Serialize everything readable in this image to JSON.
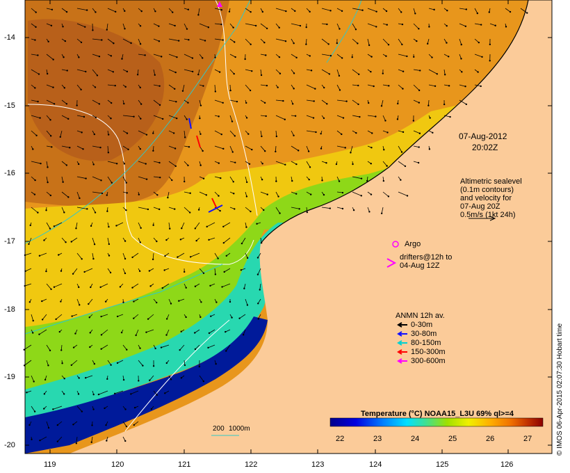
{
  "map": {
    "x_ticks": [
      "119",
      "120",
      "121",
      "122",
      "123",
      "124",
      "125",
      "126"
    ],
    "y_ticks": [
      "-14",
      "-15",
      "-16",
      "-17",
      "-18",
      "-19",
      "-20"
    ],
    "timestamp": {
      "date": "07-Aug-2012",
      "time": "20:02Z"
    },
    "altimetry_note": [
      "Altimetric sealevel",
      "(0.1m contours)",
      "and velocity for",
      "07-Aug 20Z",
      "0.5m/s (1kt 24h)"
    ],
    "argo_label": "Argo",
    "drifters_label": [
      "drifters@12h to",
      "04-Aug 12Z"
    ],
    "anmn": {
      "title": "ANMN 12h av.",
      "items": [
        {
          "label": "0-30m",
          "color": "#000000"
        },
        {
          "label": "30-80m",
          "color": "#1010ff"
        },
        {
          "label": "80-150m",
          "color": "#00d0d0"
        },
        {
          "label": "150-300m",
          "color": "#ff0000"
        },
        {
          "label": "300-600m",
          "color": "#ff00ff"
        }
      ]
    },
    "contour_legend": {
      "label1": "200",
      "label2": "1000m"
    },
    "colorbar": {
      "title": "Temperature (°C) NOAA15_L3U 69% ql>=4",
      "ticks": [
        "22",
        "23",
        "24",
        "25",
        "26",
        "27"
      ],
      "colors": [
        "#00008b",
        "#0000cd",
        "#0040ff",
        "#0090ff",
        "#00d0ff",
        "#40e0c0",
        "#60e070",
        "#a0e000",
        "#e0f000",
        "#ffe000",
        "#ffc000",
        "#ff9000",
        "#e06000",
        "#c04000",
        "#8b0000"
      ]
    },
    "credit": "© IMOS 06-Apr-2015 02:07:30 Hobart time",
    "colors": {
      "land": "#fbcb99",
      "hot": "#c86414",
      "warm": "#e6961e",
      "mid": "#f0c000",
      "cool": "#a0d800",
      "cyan": "#30e0c0",
      "deep": "#000a8c"
    }
  }
}
